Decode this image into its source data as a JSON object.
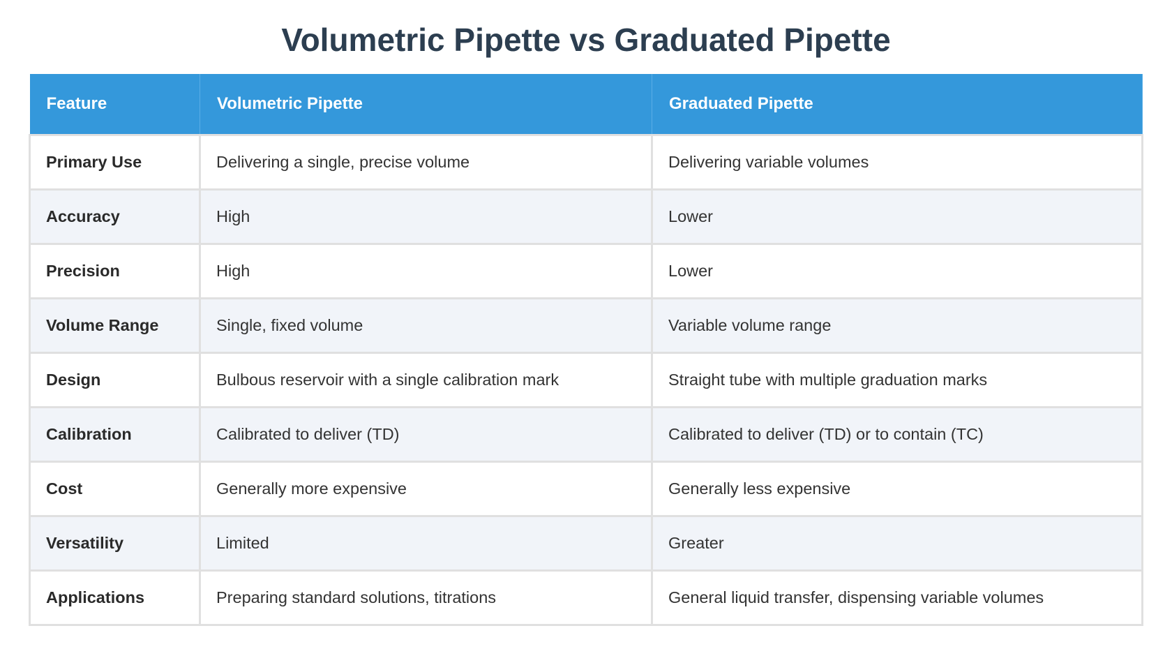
{
  "title": "Volumetric Pipette vs Graduated Pipette",
  "table": {
    "headers": [
      "Feature",
      "Volumetric Pipette",
      "Graduated Pipette"
    ],
    "rows": [
      [
        "Primary Use",
        "Delivering a single, precise volume",
        "Delivering variable volumes"
      ],
      [
        "Accuracy",
        "High",
        "Lower"
      ],
      [
        "Precision",
        "High",
        "Lower"
      ],
      [
        "Volume Range",
        "Single, fixed volume",
        "Variable volume range"
      ],
      [
        "Design",
        "Bulbous reservoir with a single calibration mark",
        "Straight tube with multiple graduation marks"
      ],
      [
        "Calibration",
        "Calibrated to deliver (TD)",
        "Calibrated to deliver (TD) or to contain (TC)"
      ],
      [
        "Cost",
        "Generally more expensive",
        "Generally less expensive"
      ],
      [
        "Versatility",
        "Limited",
        "Greater"
      ],
      [
        "Applications",
        "Preparing standard solutions, titrations",
        "General liquid transfer, dispensing variable volumes"
      ]
    ]
  },
  "colors": {
    "header_bg": "#3498db",
    "title": "#2c3e50",
    "alt_row": "#f1f4f9"
  }
}
